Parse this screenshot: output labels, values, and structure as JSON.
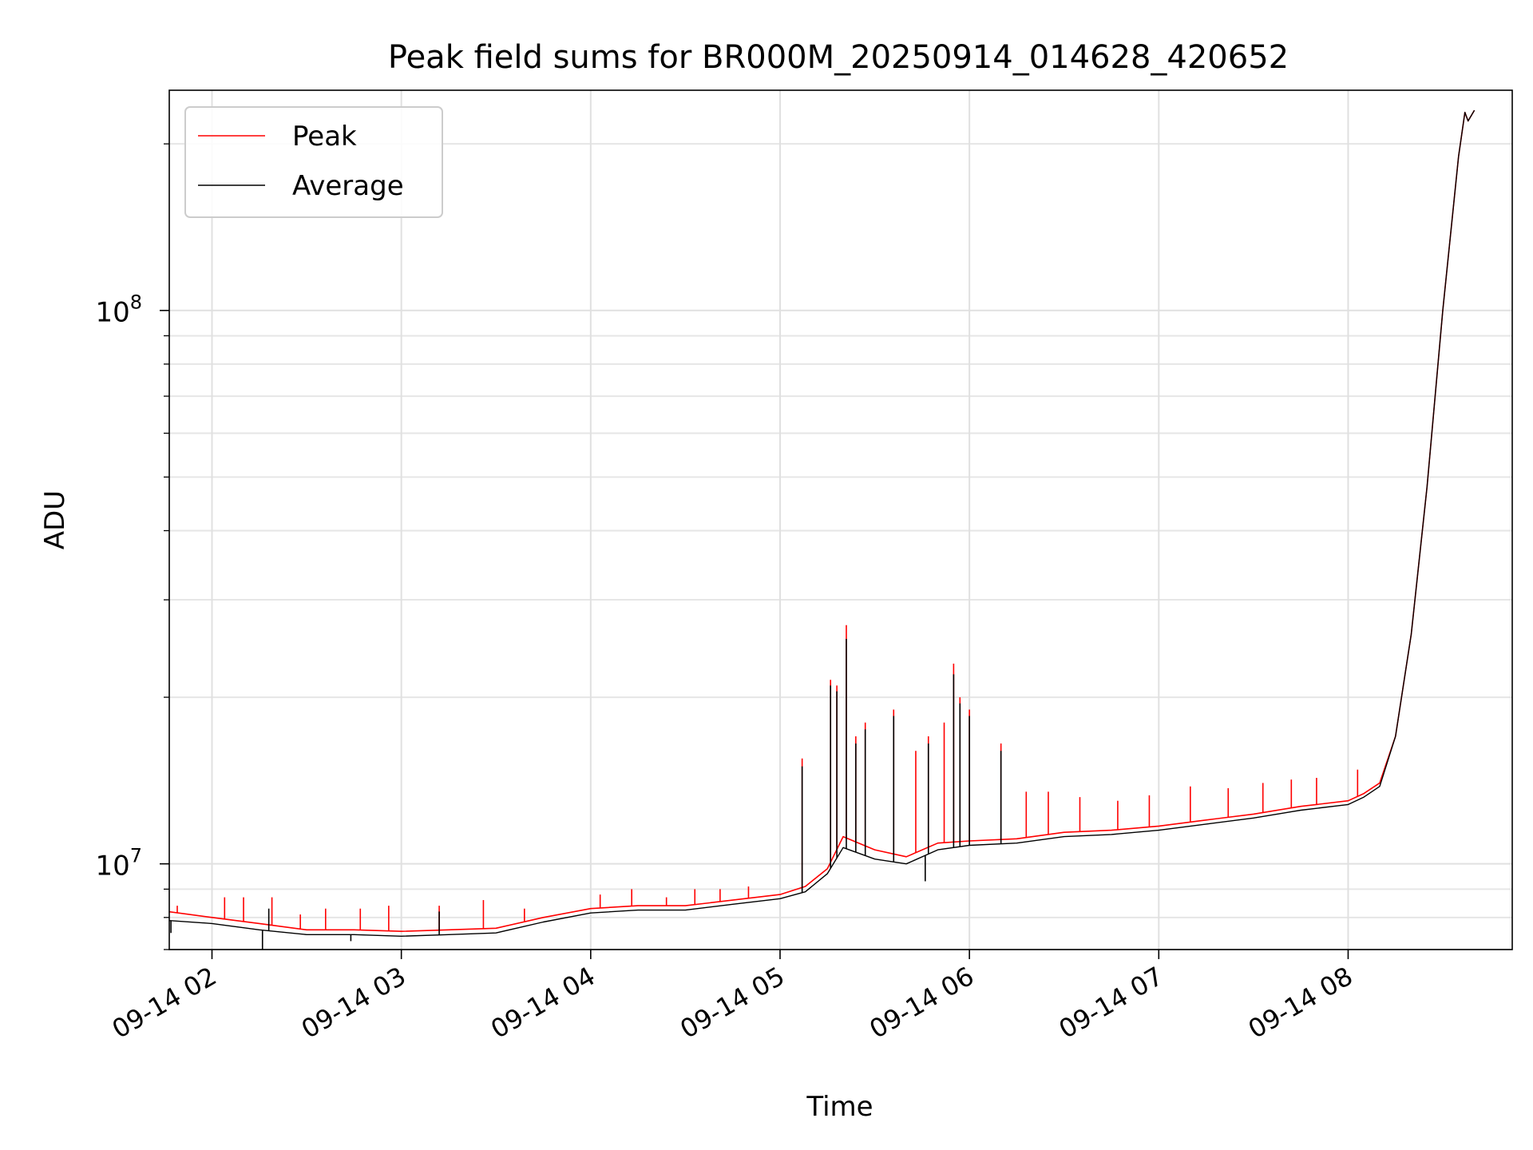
{
  "chart_data": {
    "type": "line",
    "title": "Peak field sums for BR000M_20250914_014628_420652",
    "xlabel": "Time",
    "ylabel": "ADU",
    "yscale": "log",
    "ylim": [
      7000000,
      250000000
    ],
    "xlim": [
      "2025-09-14 01:46:28",
      "2025-09-14 08:52:00"
    ],
    "grid": true,
    "grid_minor_y": true,
    "legend": "upper-left",
    "x_ticks": [
      {
        "t": "2025-09-14 02:00",
        "label": "09-14 02"
      },
      {
        "t": "2025-09-14 03:00",
        "label": "09-14 03"
      },
      {
        "t": "2025-09-14 04:00",
        "label": "09-14 04"
      },
      {
        "t": "2025-09-14 05:00",
        "label": "09-14 05"
      },
      {
        "t": "2025-09-14 06:00",
        "label": "09-14 06"
      },
      {
        "t": "2025-09-14 07:00",
        "label": "09-14 07"
      },
      {
        "t": "2025-09-14 08:00",
        "label": "09-14 08"
      }
    ],
    "y_ticks": [
      {
        "value": 10000000,
        "base": "10",
        "exp": "7"
      },
      {
        "value": 100000000,
        "base": "10",
        "exp": "8"
      }
    ],
    "series": [
      {
        "name": "Peak",
        "color": "#ff0000",
        "x": [
          "2025-09-14 01:46",
          "2025-09-14 02:00",
          "2025-09-14 02:15",
          "2025-09-14 02:30",
          "2025-09-14 02:45",
          "2025-09-14 03:00",
          "2025-09-14 03:15",
          "2025-09-14 03:30",
          "2025-09-14 03:45",
          "2025-09-14 04:00",
          "2025-09-14 04:15",
          "2025-09-14 04:30",
          "2025-09-14 04:45",
          "2025-09-14 05:00",
          "2025-09-14 05:08",
          "2025-09-14 05:15",
          "2025-09-14 05:20",
          "2025-09-14 05:30",
          "2025-09-14 05:40",
          "2025-09-14 05:50",
          "2025-09-14 06:00",
          "2025-09-14 06:15",
          "2025-09-14 06:30",
          "2025-09-14 06:45",
          "2025-09-14 07:00",
          "2025-09-14 07:15",
          "2025-09-14 07:30",
          "2025-09-14 07:45",
          "2025-09-14 08:00",
          "2025-09-14 08:05",
          "2025-09-14 08:10",
          "2025-09-14 08:15",
          "2025-09-14 08:20",
          "2025-09-14 08:25",
          "2025-09-14 08:30",
          "2025-09-14 08:35",
          "2025-09-14 08:37",
          "2025-09-14 08:38",
          "2025-09-14 08:40"
        ],
        "y": [
          8200000,
          8000000,
          7800000,
          7600000,
          7600000,
          7550000,
          7600000,
          7650000,
          8000000,
          8300000,
          8400000,
          8400000,
          8600000,
          8800000,
          9100000,
          9800000,
          11200000,
          10600000,
          10300000,
          10900000,
          11000000,
          11100000,
          11400000,
          11500000,
          11700000,
          12000000,
          12300000,
          12700000,
          13000000,
          13400000,
          14000000,
          17000000,
          26000000,
          48000000,
          100000000,
          190000000,
          228000000,
          220000000,
          230000000
        ],
        "spikes": [
          {
            "t": "2025-09-14 01:49",
            "y": 8400000
          },
          {
            "t": "2025-09-14 02:04",
            "y": 8700000
          },
          {
            "t": "2025-09-14 02:10",
            "y": 8700000
          },
          {
            "t": "2025-09-14 02:19",
            "y": 8700000
          },
          {
            "t": "2025-09-14 02:28",
            "y": 8100000
          },
          {
            "t": "2025-09-14 02:36",
            "y": 8300000
          },
          {
            "t": "2025-09-14 02:47",
            "y": 8300000
          },
          {
            "t": "2025-09-14 02:56",
            "y": 8400000
          },
          {
            "t": "2025-09-14 03:12",
            "y": 8400000
          },
          {
            "t": "2025-09-14 03:26",
            "y": 8600000
          },
          {
            "t": "2025-09-14 03:39",
            "y": 8300000
          },
          {
            "t": "2025-09-14 04:03",
            "y": 8800000
          },
          {
            "t": "2025-09-14 04:13",
            "y": 9000000
          },
          {
            "t": "2025-09-14 04:24",
            "y": 8700000
          },
          {
            "t": "2025-09-14 04:33",
            "y": 9000000
          },
          {
            "t": "2025-09-14 04:41",
            "y": 9000000
          },
          {
            "t": "2025-09-14 04:50",
            "y": 9100000
          },
          {
            "t": "2025-09-14 05:07",
            "y": 15500000
          },
          {
            "t": "2025-09-14 05:16",
            "y": 21500000
          },
          {
            "t": "2025-09-14 05:18",
            "y": 21000000
          },
          {
            "t": "2025-09-14 05:21",
            "y": 27000000
          },
          {
            "t": "2025-09-14 05:24",
            "y": 17000000
          },
          {
            "t": "2025-09-14 05:27",
            "y": 18000000
          },
          {
            "t": "2025-09-14 05:36",
            "y": 19000000
          },
          {
            "t": "2025-09-14 05:43",
            "y": 16000000
          },
          {
            "t": "2025-09-14 05:47",
            "y": 17000000
          },
          {
            "t": "2025-09-14 05:52",
            "y": 18000000
          },
          {
            "t": "2025-09-14 05:55",
            "y": 23000000
          },
          {
            "t": "2025-09-14 05:57",
            "y": 20000000
          },
          {
            "t": "2025-09-14 06:00",
            "y": 19000000
          },
          {
            "t": "2025-09-14 06:10",
            "y": 16500000
          },
          {
            "t": "2025-09-14 06:18",
            "y": 13500000
          },
          {
            "t": "2025-09-14 06:25",
            "y": 13500000
          },
          {
            "t": "2025-09-14 06:35",
            "y": 13200000
          },
          {
            "t": "2025-09-14 06:47",
            "y": 13000000
          },
          {
            "t": "2025-09-14 06:57",
            "y": 13300000
          },
          {
            "t": "2025-09-14 07:10",
            "y": 13800000
          },
          {
            "t": "2025-09-14 07:22",
            "y": 13700000
          },
          {
            "t": "2025-09-14 07:33",
            "y": 14000000
          },
          {
            "t": "2025-09-14 07:42",
            "y": 14200000
          },
          {
            "t": "2025-09-14 07:50",
            "y": 14300000
          },
          {
            "t": "2025-09-14 08:03",
            "y": 14800000
          }
        ]
      },
      {
        "name": "Average",
        "color": "#000000",
        "x": [
          "2025-09-14 01:46",
          "2025-09-14 02:00",
          "2025-09-14 02:15",
          "2025-09-14 02:30",
          "2025-09-14 02:45",
          "2025-09-14 03:00",
          "2025-09-14 03:15",
          "2025-09-14 03:30",
          "2025-09-14 03:45",
          "2025-09-14 04:00",
          "2025-09-14 04:15",
          "2025-09-14 04:30",
          "2025-09-14 04:45",
          "2025-09-14 05:00",
          "2025-09-14 05:08",
          "2025-09-14 05:15",
          "2025-09-14 05:20",
          "2025-09-14 05:30",
          "2025-09-14 05:40",
          "2025-09-14 05:50",
          "2025-09-14 06:00",
          "2025-09-14 06:15",
          "2025-09-14 06:30",
          "2025-09-14 06:45",
          "2025-09-14 07:00",
          "2025-09-14 07:15",
          "2025-09-14 07:30",
          "2025-09-14 07:45",
          "2025-09-14 08:00",
          "2025-09-14 08:05",
          "2025-09-14 08:10",
          "2025-09-14 08:15",
          "2025-09-14 08:20",
          "2025-09-14 08:25",
          "2025-09-14 08:30",
          "2025-09-14 08:35",
          "2025-09-14 08:37",
          "2025-09-14 08:38",
          "2025-09-14 08:40"
        ],
        "y": [
          7900000,
          7800000,
          7600000,
          7450000,
          7450000,
          7400000,
          7450000,
          7500000,
          7850000,
          8150000,
          8250000,
          8250000,
          8450000,
          8650000,
          8900000,
          9600000,
          10700000,
          10200000,
          10000000,
          10600000,
          10800000,
          10900000,
          11200000,
          11300000,
          11500000,
          11800000,
          12100000,
          12500000,
          12800000,
          13200000,
          13800000,
          17000000,
          26000000,
          48000000,
          100000000,
          190000000,
          228000000,
          220000000,
          230000000
        ],
        "spikes": [
          {
            "t": "2025-09-14 02:18",
            "y": 8300000
          },
          {
            "t": "2025-09-14 03:12",
            "y": 8200000
          },
          {
            "t": "2025-09-14 05:07",
            "y": 15000000
          },
          {
            "t": "2025-09-14 05:16",
            "y": 21000000
          },
          {
            "t": "2025-09-14 05:18",
            "y": 20500000
          },
          {
            "t": "2025-09-14 05:21",
            "y": 25500000
          },
          {
            "t": "2025-09-14 05:24",
            "y": 16500000
          },
          {
            "t": "2025-09-14 05:27",
            "y": 17500000
          },
          {
            "t": "2025-09-14 05:36",
            "y": 18500000
          },
          {
            "t": "2025-09-14 05:47",
            "y": 16500000
          },
          {
            "t": "2025-09-14 05:55",
            "y": 22000000
          },
          {
            "t": "2025-09-14 05:57",
            "y": 19500000
          },
          {
            "t": "2025-09-14 06:00",
            "y": 18500000
          },
          {
            "t": "2025-09-14 06:10",
            "y": 16000000
          }
        ],
        "dips": [
          {
            "t": "2025-09-14 01:47",
            "y": 7500000
          },
          {
            "t": "2025-09-14 02:16",
            "y": 7000000
          },
          {
            "t": "2025-09-14 02:44",
            "y": 7250000
          },
          {
            "t": "2025-09-14 05:46",
            "y": 9300000
          }
        ]
      }
    ]
  }
}
